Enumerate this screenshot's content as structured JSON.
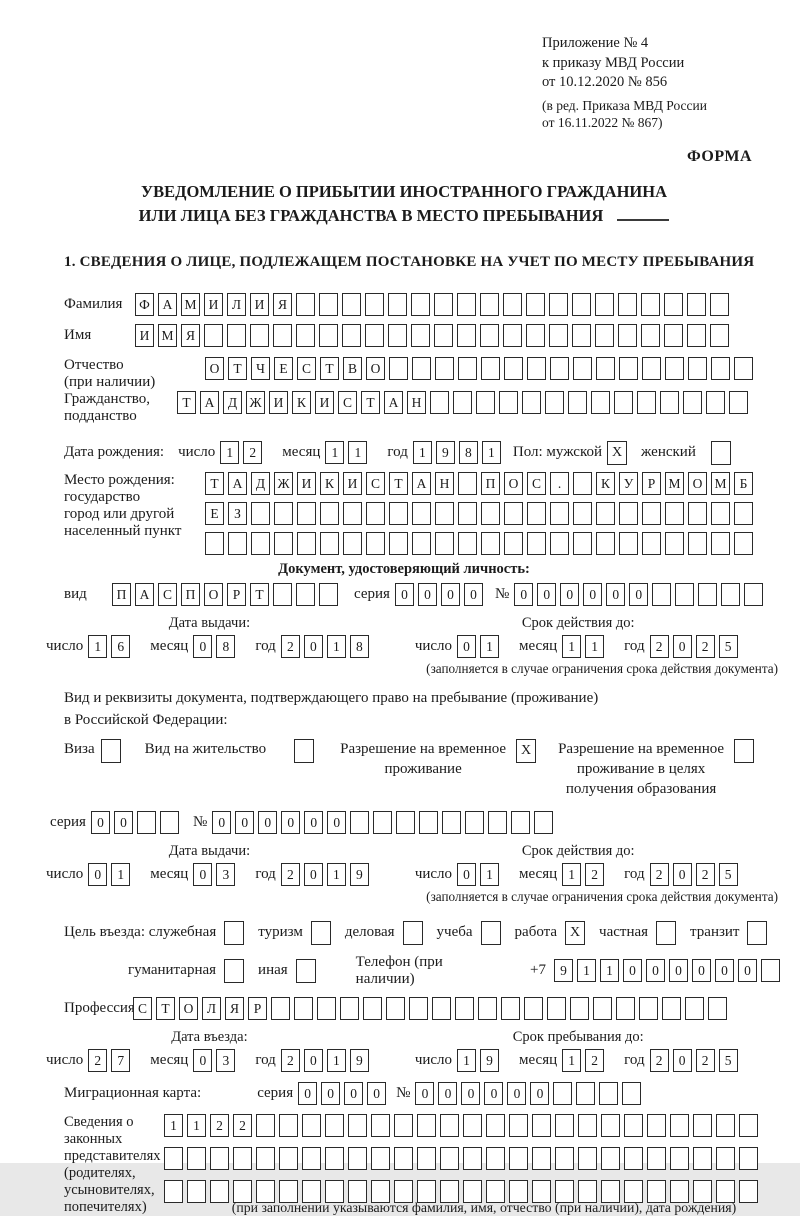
{
  "colors": {
    "ink": "#1b1b1b",
    "paper": "#ffffff",
    "cell_border": "#2a2a2a"
  },
  "meta": {
    "appendix_lines": [
      "Приложение № 4",
      "к приказу МВД России",
      "от 10.12.2020 № 856"
    ],
    "revision_lines": [
      "(в ред. Приказа МВД России",
      "от 16.11.2022 № 867)"
    ],
    "forma": "ФОРМА"
  },
  "title": {
    "line1": "УВЕДОМЛЕНИЕ О ПРИБЫТИИ ИНОСТРАННОГО ГРАЖДАНИНА",
    "line2": "ИЛИ ЛИЦА БЕЗ ГРАЖДАНСТВА В МЕСТО ПРЕБЫВАНИЯ"
  },
  "section1_heading": "1. СВЕДЕНИЯ О ЛИЦЕ, ПОДЛЕЖАЩЕМ ПОСТАНОВКЕ НА УЧЕТ ПО МЕСТУ ПРЕБЫВАНИЯ",
  "date_labels": {
    "day": "число",
    "month": "месяц",
    "year": "год"
  },
  "person": {
    "surname": {
      "label": "Фамилия",
      "cells": {
        "value": "ФАМИЛИЯ",
        "count": 26
      }
    },
    "name": {
      "label": "Имя",
      "cells": {
        "value": "ИМЯ",
        "count": 26
      }
    },
    "patronymic": {
      "label1": "Отчество",
      "label2": "(при наличии)",
      "cells": {
        "value": "ОТЧЕСТВО",
        "count": 24
      }
    },
    "citizenship": {
      "label1": "Гражданство,",
      "label2": "подданство",
      "cells": {
        "value": "ТАДЖИКИСТАН",
        "count": 25
      }
    },
    "birth_date": {
      "label": "Дата рождения:",
      "day": {
        "value": "12",
        "count": 2
      },
      "month": {
        "value": "11",
        "count": 2
      },
      "year": {
        "value": "1981",
        "count": 4
      },
      "sex_label": "Пол: мужской",
      "male_checkbox": "X",
      "female_label": "женский",
      "female_checkbox": ""
    },
    "birth_place": {
      "label_lines": [
        "Место рождения:",
        "государство",
        "город или другой",
        "населенный пункт"
      ],
      "line1": {
        "value": "ТАДЖИКИСТАН ПОС. КУРМОМБ",
        "count": 24
      },
      "line2": {
        "value": "ЕЗ",
        "count": 24
      },
      "line3": {
        "value": "",
        "count": 24
      }
    }
  },
  "id_doc": {
    "heading": "Документ, удостоверяющий личность:",
    "type_label": "вид",
    "type": {
      "value": "ПАСПОРТ",
      "count": 10
    },
    "series_label": "серия",
    "series": {
      "value": "0000",
      "count": 4
    },
    "number_label": "№",
    "number": {
      "value": "000000",
      "count": 11
    },
    "issue_title": "Дата выдачи:",
    "issue": {
      "day": {
        "value": "16",
        "count": 2
      },
      "month": {
        "value": "08",
        "count": 2
      },
      "year": {
        "value": "2018",
        "count": 4
      }
    },
    "valid_title": "Срок действия до:",
    "valid": {
      "day": {
        "value": "01",
        "count": 2
      },
      "month": {
        "value": "11",
        "count": 2
      },
      "year": {
        "value": "2025",
        "count": 4
      }
    },
    "note": "(заполняется в случае ограничения срока действия документа)"
  },
  "permit_doc": {
    "intro_line1": "Вид и реквизиты документа, подтверждающего право на пребывание (проживание)",
    "intro_line2": "в Российской Федерации:",
    "visa_label": "Виза",
    "visa_checkbox": "",
    "residence_label": "Вид на жительство",
    "residence_checkbox": "",
    "temp_permit_label1": "Разрешение на временное",
    "temp_permit_label2": "проживание",
    "temp_permit_checkbox": "X",
    "edu_permit_label1": "Разрешение на временное",
    "edu_permit_label2": "проживание в целях",
    "edu_permit_label3": "получения образования",
    "edu_permit_checkbox": "",
    "series_label": "серия",
    "series": {
      "value": "00",
      "count": 4
    },
    "number_label": "№",
    "number": {
      "value": "000000",
      "count": 15
    },
    "issue_title": "Дата выдачи:",
    "issue": {
      "day": {
        "value": "01",
        "count": 2
      },
      "month": {
        "value": "03",
        "count": 2
      },
      "year": {
        "value": "2019",
        "count": 4
      }
    },
    "valid_title": "Срок действия до:",
    "valid": {
      "day": {
        "value": "01",
        "count": 2
      },
      "month": {
        "value": "12",
        "count": 2
      },
      "year": {
        "value": "2025",
        "count": 4
      }
    },
    "note": "(заполняется в случае ограничения срока действия документа)"
  },
  "visit": {
    "purpose_label": "Цель въезда: служебная",
    "official_checkbox": "",
    "tourism_label": "туризм",
    "tourism_checkbox": "",
    "business_label": "деловая",
    "business_checkbox": "",
    "study_label": "учеба",
    "study_checkbox": "",
    "work_label": "работа",
    "work_checkbox": "X",
    "private_label": "частная",
    "private_checkbox": "",
    "transit_label": "транзит",
    "transit_checkbox": "",
    "humanitarian_label": "гуманитарная",
    "humanitarian_checkbox": "",
    "other_label": "иная",
    "other_checkbox": "",
    "phone_label": "Телефон (при наличии)",
    "phone_prefix": "+7",
    "phone": {
      "value": "911000000",
      "count": 10
    },
    "profession_label": "Профессия",
    "profession": {
      "value": "СТОЛЯР",
      "count": 26
    },
    "entry_title": "Дата въезда:",
    "entry": {
      "day": {
        "value": "27",
        "count": 2
      },
      "month": {
        "value": "03",
        "count": 2
      },
      "year": {
        "value": "2019",
        "count": 4
      }
    },
    "stay_title": "Срок пребывания до:",
    "stay": {
      "day": {
        "value": "19",
        "count": 2
      },
      "month": {
        "value": "12",
        "count": 2
      },
      "year": {
        "value": "2025",
        "count": 4
      }
    }
  },
  "migration_card": {
    "label": "Миграционная карта:",
    "series_label": "серия",
    "series": {
      "value": "0000",
      "count": 4
    },
    "number_label": "№",
    "number": {
      "value": "000000",
      "count": 10
    }
  },
  "representatives": {
    "label_lines": [
      "Сведения о",
      "законных",
      "представителях",
      "(родителях,",
      "усыновителях,",
      "попечителях)"
    ],
    "line1": {
      "value": "1122",
      "count": 26
    },
    "line2": {
      "value": "",
      "count": 26
    },
    "line3": {
      "value": "",
      "count": 26
    },
    "note": "(при заполнении указываются фамилия, имя, отчество (при наличии), дата рождения)"
  }
}
